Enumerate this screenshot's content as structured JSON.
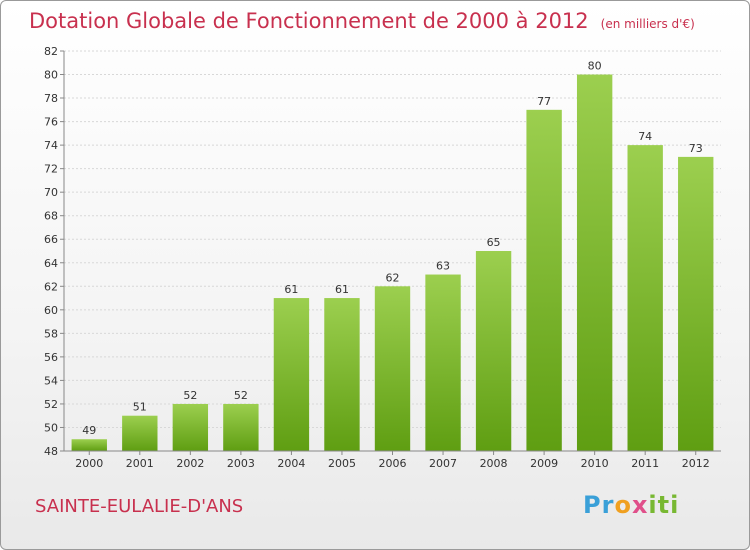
{
  "title": "Dotation Globale de Fonctionnement de 2000 à 2012",
  "unit": "(en milliers d'€)",
  "place": "SAINTE-EULALIE-D'ANS",
  "logo": "Proxiti",
  "colors": {
    "bar_top": "#9ccf4f",
    "bar_bottom": "#5f9e12",
    "title": "#c8304e"
  },
  "chart_data": {
    "type": "bar",
    "categories": [
      "2000",
      "2001",
      "2002",
      "2003",
      "2004",
      "2005",
      "2006",
      "2007",
      "2008",
      "2009",
      "2010",
      "2011",
      "2012"
    ],
    "values": [
      49,
      51,
      52,
      52,
      61,
      61,
      62,
      63,
      65,
      77,
      80,
      74,
      73
    ],
    "ylim": [
      48,
      82
    ],
    "yticks": [
      48,
      50,
      52,
      54,
      56,
      58,
      60,
      62,
      64,
      66,
      68,
      70,
      72,
      74,
      76,
      78,
      80,
      82
    ],
    "grid": true
  }
}
